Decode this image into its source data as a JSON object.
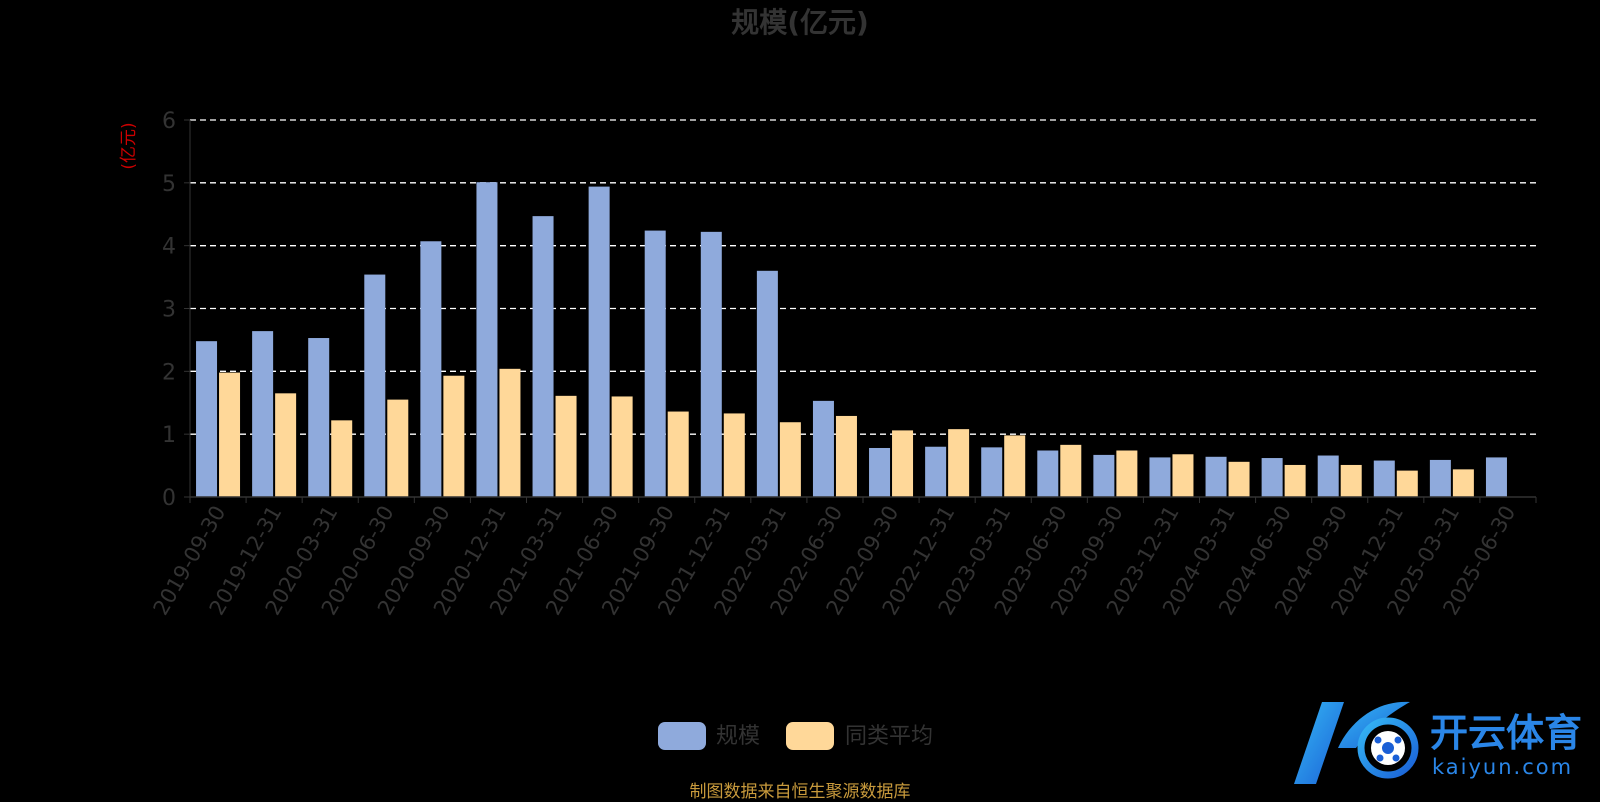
{
  "chart_data": {
    "type": "bar",
    "title": "规模(亿元)",
    "ylabel": "(亿元)",
    "ylim": [
      0,
      6
    ],
    "yticks": [
      "0",
      "1",
      "2",
      "3",
      "4",
      "5",
      "6"
    ],
    "grid": "dashed-horizontal",
    "legend_position": "bottom-center",
    "categories": [
      "2019-09-30",
      "2019-12-31",
      "2020-03-31",
      "2020-06-30",
      "2020-09-30",
      "2020-12-31",
      "2021-03-31",
      "2021-06-30",
      "2021-09-30",
      "2021-12-31",
      "2022-03-31",
      "2022-06-30",
      "2022-09-30",
      "2022-12-31",
      "2023-03-31",
      "2023-06-30",
      "2023-09-30",
      "2023-12-31",
      "2024-03-31",
      "2024-06-30",
      "2024-09-30",
      "2024-12-31",
      "2025-03-31",
      "2025-06-30"
    ],
    "series": [
      {
        "name": "规模",
        "color": "#8faadc",
        "values": [
          2.48,
          2.64,
          2.53,
          3.54,
          4.07,
          5.01,
          4.47,
          4.94,
          4.24,
          4.22,
          3.6,
          1.53,
          0.78,
          0.8,
          0.79,
          0.74,
          0.67,
          0.63,
          0.64,
          0.62,
          0.66,
          0.58,
          0.59,
          0.63
        ]
      },
      {
        "name": "同类平均",
        "color": "#ffd899",
        "values": [
          1.98,
          1.65,
          1.22,
          1.55,
          1.93,
          2.04,
          1.61,
          1.6,
          1.36,
          1.33,
          1.19,
          1.29,
          1.06,
          1.08,
          0.98,
          0.83,
          0.74,
          0.68,
          0.56,
          0.51,
          0.51,
          0.42,
          0.44,
          null
        ]
      }
    ]
  },
  "watermark": {
    "brand": "开云体育",
    "url": "kaiyun.com"
  },
  "footer": {
    "source": "制图数据来自恒生聚源数据库"
  }
}
